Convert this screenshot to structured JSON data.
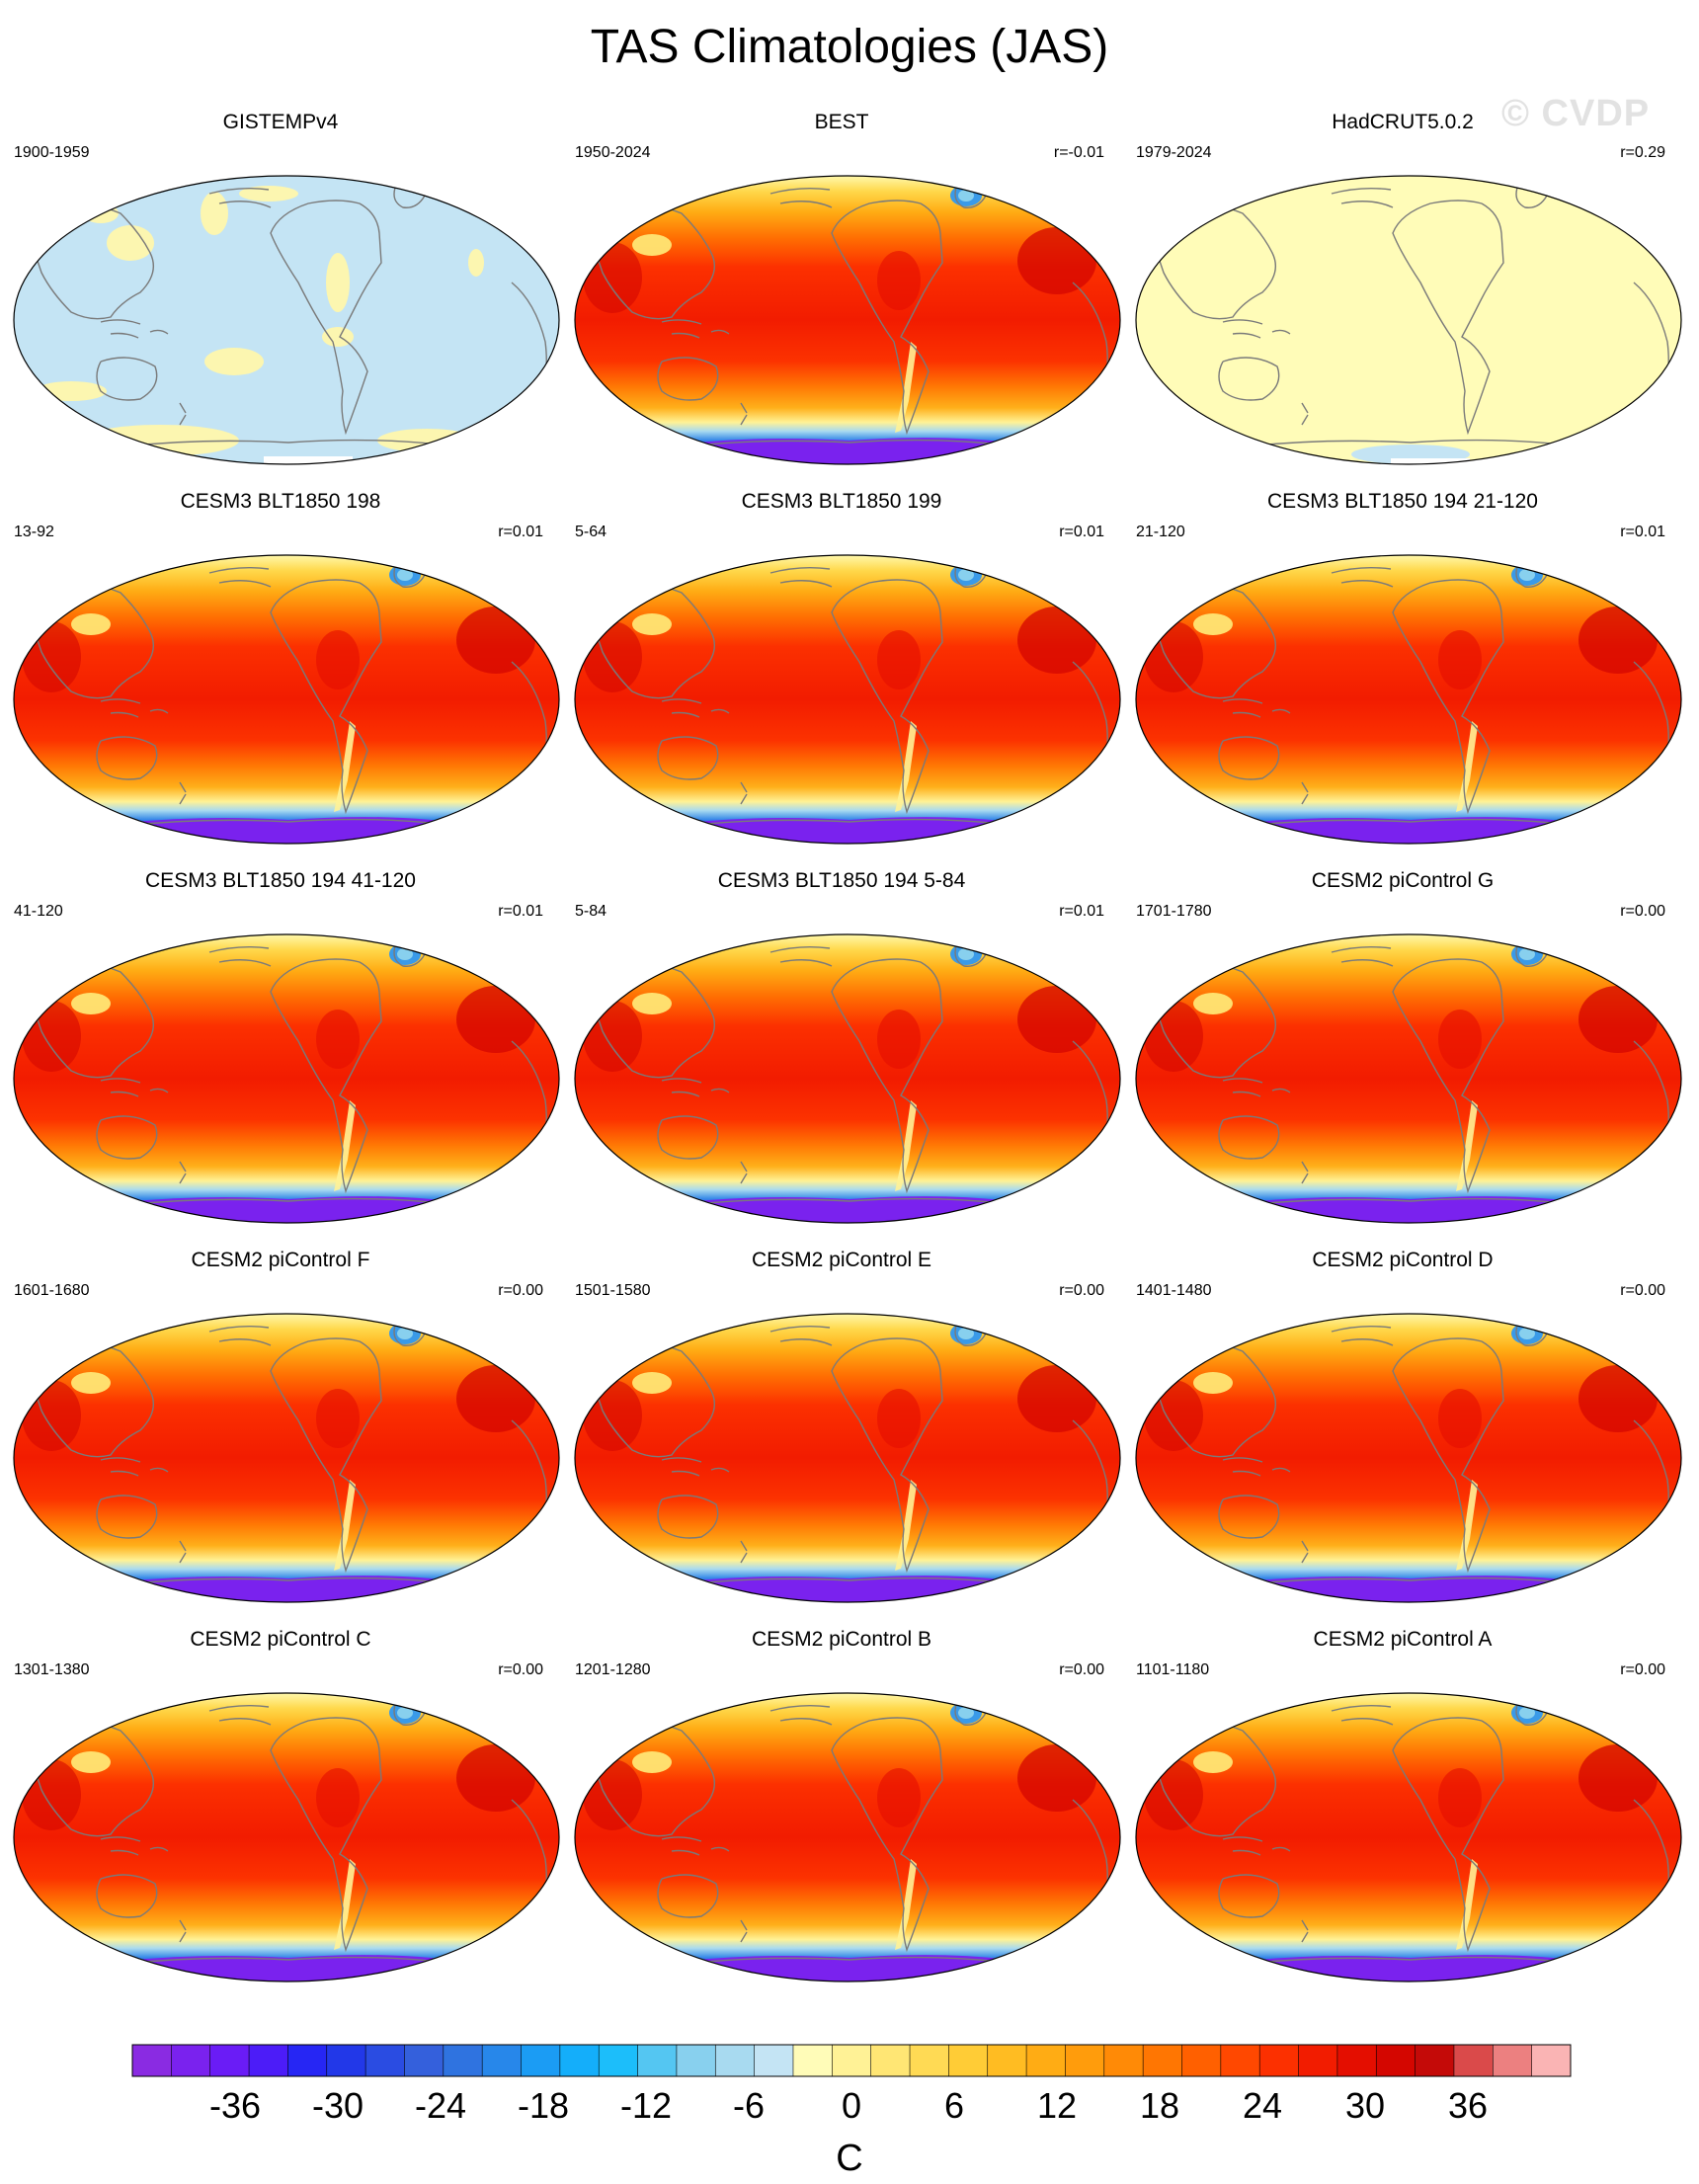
{
  "title": "TAS Climatologies (JAS)",
  "watermark": "© CVDP",
  "panels": [
    {
      "name": "GISTEMPv4",
      "period": "1900-1959",
      "corr": "",
      "kind": "anomaly-cool"
    },
    {
      "name": "BEST",
      "period": "1950-2024",
      "corr": "r=-0.01",
      "kind": "full"
    },
    {
      "name": "HadCRUT5.0.2",
      "period": "1979-2024",
      "corr": "r=0.29",
      "kind": "anomaly-warm"
    },
    {
      "name": "CESM3 BLT1850 198",
      "period": "13-92",
      "corr": "r=0.01",
      "kind": "full"
    },
    {
      "name": "CESM3 BLT1850 199",
      "period": "5-64",
      "corr": "r=0.01",
      "kind": "full"
    },
    {
      "name": "CESM3 BLT1850 194 21-120",
      "period": "21-120",
      "corr": "r=0.01",
      "kind": "full"
    },
    {
      "name": "CESM3 BLT1850 194 41-120",
      "period": "41-120",
      "corr": "r=0.01",
      "kind": "full"
    },
    {
      "name": "CESM3 BLT1850 194 5-84",
      "period": "5-84",
      "corr": "r=0.01",
      "kind": "full"
    },
    {
      "name": "CESM2 piControl G",
      "period": "1701-1780",
      "corr": "r=0.00",
      "kind": "full"
    },
    {
      "name": "CESM2 piControl F",
      "period": "1601-1680",
      "corr": "r=0.00",
      "kind": "full"
    },
    {
      "name": "CESM2 piControl E",
      "period": "1501-1580",
      "corr": "r=0.00",
      "kind": "full"
    },
    {
      "name": "CESM2 piControl D",
      "period": "1401-1480",
      "corr": "r=0.00",
      "kind": "full"
    },
    {
      "name": "CESM2 piControl C",
      "period": "1301-1380",
      "corr": "r=0.00",
      "kind": "full"
    },
    {
      "name": "CESM2 piControl B",
      "period": "1201-1280",
      "corr": "r=0.00",
      "kind": "full"
    },
    {
      "name": "CESM2 piControl A",
      "period": "1101-1180",
      "corr": "r=0.00",
      "kind": "full"
    }
  ],
  "colorbar": {
    "unit": "C",
    "tick_labels": [
      "-36",
      "-30",
      "-24",
      "-18",
      "-12",
      "-6",
      "0",
      "6",
      "12",
      "18",
      "24",
      "30",
      "36"
    ],
    "tick_values": [
      -36,
      -30,
      -24,
      -18,
      -12,
      -6,
      0,
      6,
      12,
      18,
      24,
      30,
      36
    ],
    "min": -42,
    "max": 42,
    "step": 2,
    "colors": [
      "#8a2be2",
      "#7a22ee",
      "#6a1cf6",
      "#4c1cf8",
      "#2626f4",
      "#2238e8",
      "#2a4ce2",
      "#3460dc",
      "#2f73e0",
      "#2787ea",
      "#1b9cf4",
      "#14aefa",
      "#1cbefa",
      "#54c6f2",
      "#88d0ee",
      "#a8daf0",
      "#c4e4f4",
      "#fffcb8",
      "#fff296",
      "#ffe674",
      "#ffda54",
      "#ffcc36",
      "#ffbc22",
      "#ffac14",
      "#ff9c0c",
      "#ff8a06",
      "#ff7602",
      "#ff6000",
      "#ff4800",
      "#fc3000",
      "#f21c00",
      "#e40e00",
      "#d40600",
      "#c40a08",
      "#da4a4a",
      "#ec8080",
      "#fab4b4"
    ]
  }
}
